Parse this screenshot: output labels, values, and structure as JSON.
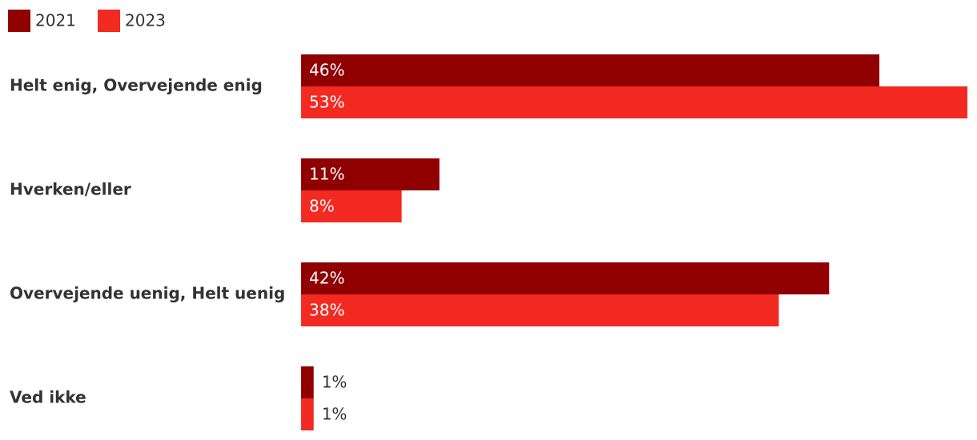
{
  "chart_data": {
    "type": "hbar",
    "categories": [
      "Helt enig, Overvejende enig",
      "Hverken/eller",
      "Overvejende uenig, Helt uenig",
      "Ved ikke"
    ],
    "series": [
      {
        "name": "2021",
        "color": "#900000",
        "values": [
          46,
          11,
          42,
          1
        ],
        "value_labels": [
          "46%",
          "11%",
          "42%",
          "1%"
        ]
      },
      {
        "name": "2023",
        "color": "#f22a22",
        "values": [
          53,
          8,
          38,
          1
        ],
        "value_labels": [
          "53%",
          "8%",
          "38%",
          "1%"
        ]
      }
    ],
    "legend": "top-left"
  }
}
